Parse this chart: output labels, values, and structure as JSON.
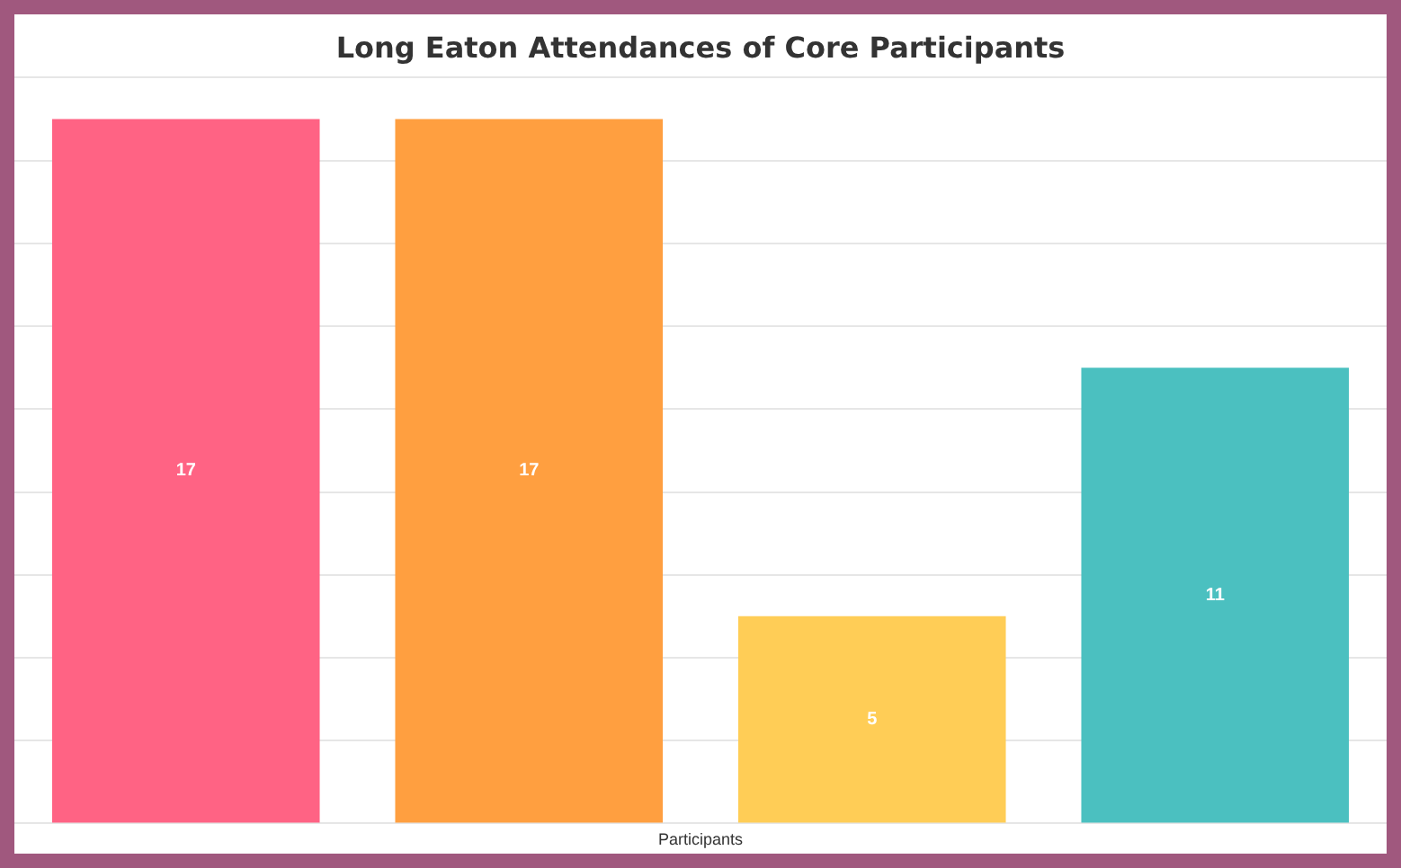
{
  "chart_data": {
    "type": "bar",
    "title": "Long Eaton Attendances of Core Participants",
    "xlabel": "Participants",
    "categories": [
      null,
      null,
      null,
      null
    ],
    "values": [
      17,
      17,
      5,
      11
    ],
    "colors": [
      "#ff6384",
      "#ff9f40",
      "#ffcd56",
      "#4bc0c0"
    ],
    "ylim": [
      0,
      18
    ],
    "yticks": [
      {
        "value": 0,
        "label": null
      },
      {
        "value": 2,
        "label": null
      },
      {
        "value": 4,
        "label": null
      },
      {
        "value": 6,
        "label": null
      },
      {
        "value": 8,
        "label": null
      },
      {
        "value": 10,
        "label": null
      },
      {
        "value": 12,
        "label": null
      },
      {
        "value": 14,
        "label": null
      },
      {
        "value": 16,
        "label": null
      },
      {
        "value": 18,
        "label": null
      }
    ],
    "tick_labels": false,
    "grid": "y",
    "legend": false,
    "data_labels": true
  }
}
